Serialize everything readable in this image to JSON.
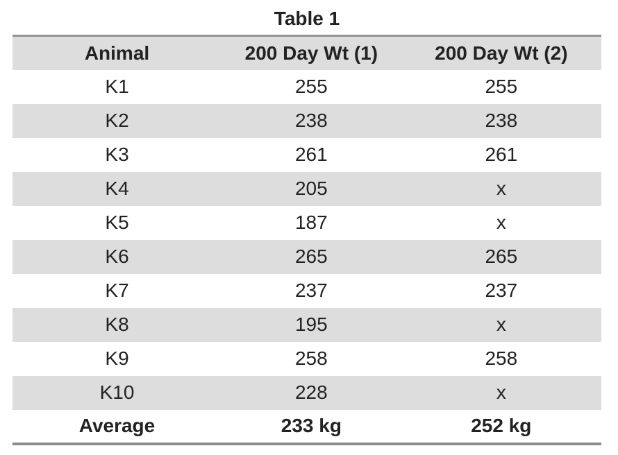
{
  "chart_data": {
    "type": "table",
    "title": "Table 1",
    "columns": [
      "Animal",
      "200 Day Wt (1)",
      "200 Day Wt (2)"
    ],
    "rows": [
      [
        "K1",
        "255",
        "255"
      ],
      [
        "K2",
        "238",
        "238"
      ],
      [
        "K3",
        "261",
        "261"
      ],
      [
        "K4",
        "205",
        "x"
      ],
      [
        "K5",
        "187",
        "x"
      ],
      [
        "K6",
        "265",
        "265"
      ],
      [
        "K7",
        "237",
        "237"
      ],
      [
        "K8",
        "195",
        "x"
      ],
      [
        "K9",
        "258",
        "258"
      ],
      [
        "K10",
        "228",
        "x"
      ]
    ],
    "footer": [
      "Average",
      "233 kg",
      "252 kg"
    ],
    "missing_value_marker": "x",
    "units": "kg",
    "layout_hints": {
      "striped_rows": true,
      "first_data_row_background": "white",
      "alignment": "center"
    }
  },
  "colors": {
    "stripe": "#dcdddc",
    "border_top": "#929494",
    "border_bottom": "#8b8d8c",
    "text": "#242122",
    "background": "#ffffff"
  }
}
